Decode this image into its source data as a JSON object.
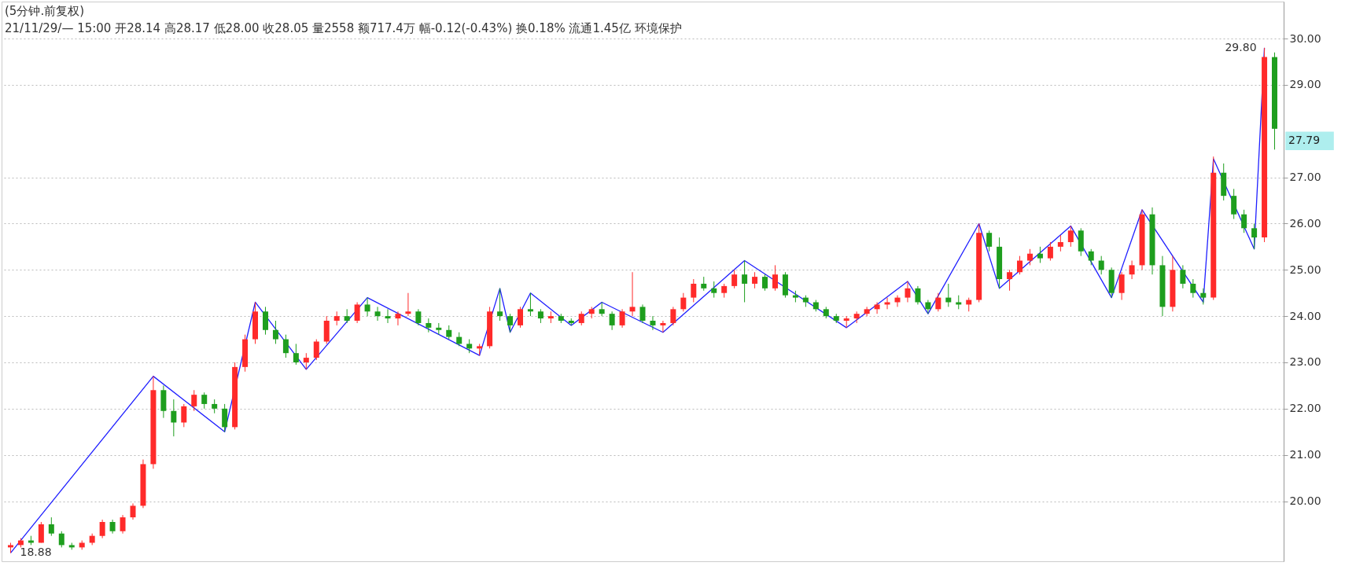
{
  "chart_data": {
    "type": "candlestick",
    "title": "(5分钟.前复权)",
    "annotations": [
      "21/11/29/— 15:00 开28.14 高28.17 低28.00 收28.05 量2558 额717.4万 幅-0.12(-0.43%) 换0.18% 流通1.45亿 环境保护",
      "29.80",
      "18.88",
      "27.79"
    ],
    "categories": [
      null,
      null,
      null,
      null,
      null,
      null,
      null,
      null,
      null,
      null,
      null,
      null,
      null,
      null,
      null,
      null,
      null,
      null,
      null,
      null,
      null,
      null,
      null,
      null,
      null,
      null,
      null,
      null,
      null,
      null,
      null,
      null,
      null,
      null,
      null,
      null,
      null,
      null,
      null,
      null,
      null,
      null,
      null,
      null,
      null,
      null,
      null,
      null,
      null,
      null,
      null,
      null,
      null,
      null,
      null,
      null,
      null,
      null,
      null,
      null,
      null,
      null,
      null,
      null,
      null,
      null,
      null,
      null,
      null,
      null,
      null,
      null,
      null,
      null,
      null,
      null,
      null,
      null,
      null,
      null,
      null,
      null,
      null,
      null,
      null,
      null,
      null,
      null,
      null,
      null,
      null,
      null,
      null,
      null,
      null,
      null,
      null,
      null,
      null,
      null,
      null,
      null,
      null,
      null,
      null,
      null,
      null,
      null,
      null,
      null,
      null,
      null,
      null,
      null,
      null,
      null,
      null,
      null,
      null,
      null,
      null,
      null,
      null,
      null,
      null
    ],
    "ohlc": [
      [
        19.0,
        19.1,
        18.88,
        19.05
      ],
      [
        19.05,
        19.2,
        19.0,
        19.15
      ],
      [
        19.15,
        19.25,
        19.05,
        19.1
      ],
      [
        19.1,
        19.55,
        19.1,
        19.5
      ],
      [
        19.5,
        19.65,
        19.25,
        19.3
      ],
      [
        19.3,
        19.35,
        19.0,
        19.05
      ],
      [
        19.05,
        19.1,
        18.95,
        19.0
      ],
      [
        19.0,
        19.15,
        18.95,
        19.1
      ],
      [
        19.1,
        19.3,
        19.05,
        19.25
      ],
      [
        19.25,
        19.6,
        19.2,
        19.55
      ],
      [
        19.55,
        19.6,
        19.3,
        19.35
      ],
      [
        19.35,
        19.7,
        19.3,
        19.65
      ],
      [
        19.65,
        19.95,
        19.6,
        19.9
      ],
      [
        19.9,
        20.9,
        19.85,
        20.8
      ],
      [
        20.8,
        22.7,
        20.7,
        22.4
      ],
      [
        22.4,
        22.5,
        21.8,
        21.95
      ],
      [
        21.95,
        22.2,
        21.4,
        21.7
      ],
      [
        21.7,
        22.1,
        21.6,
        22.05
      ],
      [
        22.05,
        22.4,
        21.95,
        22.3
      ],
      [
        22.3,
        22.35,
        22.0,
        22.1
      ],
      [
        22.1,
        22.2,
        21.9,
        22.0
      ],
      [
        22.0,
        22.1,
        21.5,
        21.6
      ],
      [
        21.6,
        23.0,
        21.55,
        22.9
      ],
      [
        22.9,
        23.6,
        22.8,
        23.5
      ],
      [
        23.5,
        24.3,
        23.4,
        24.1
      ],
      [
        24.1,
        24.2,
        23.6,
        23.7
      ],
      [
        23.7,
        23.9,
        23.4,
        23.5
      ],
      [
        23.5,
        23.6,
        23.1,
        23.2
      ],
      [
        23.2,
        23.4,
        22.95,
        23.0
      ],
      [
        23.0,
        23.2,
        22.85,
        23.1
      ],
      [
        23.1,
        23.5,
        23.05,
        23.45
      ],
      [
        23.45,
        24.0,
        23.4,
        23.9
      ],
      [
        23.9,
        24.1,
        23.8,
        24.0
      ],
      [
        24.0,
        24.15,
        23.85,
        23.9
      ],
      [
        23.9,
        24.3,
        23.85,
        24.25
      ],
      [
        24.25,
        24.4,
        24.0,
        24.1
      ],
      [
        24.1,
        24.2,
        23.9,
        24.0
      ],
      [
        24.0,
        24.15,
        23.85,
        23.95
      ],
      [
        23.95,
        24.1,
        23.8,
        24.05
      ],
      [
        24.05,
        24.5,
        24.0,
        24.1
      ],
      [
        24.1,
        24.15,
        23.8,
        23.85
      ],
      [
        23.85,
        23.95,
        23.65,
        23.75
      ],
      [
        23.75,
        23.85,
        23.6,
        23.7
      ],
      [
        23.7,
        23.8,
        23.5,
        23.55
      ],
      [
        23.55,
        23.65,
        23.35,
        23.4
      ],
      [
        23.4,
        23.5,
        23.2,
        23.3
      ],
      [
        23.3,
        23.4,
        23.15,
        23.35
      ],
      [
        23.35,
        24.2,
        23.3,
        24.1
      ],
      [
        24.1,
        24.6,
        23.9,
        24.0
      ],
      [
        24.0,
        24.05,
        23.65,
        23.8
      ],
      [
        23.8,
        24.2,
        23.75,
        24.15
      ],
      [
        24.15,
        24.5,
        24.0,
        24.1
      ],
      [
        24.1,
        24.15,
        23.85,
        23.95
      ],
      [
        23.95,
        24.1,
        23.85,
        24.0
      ],
      [
        24.0,
        24.05,
        23.85,
        23.9
      ],
      [
        23.9,
        23.95,
        23.8,
        23.85
      ],
      [
        23.85,
        24.1,
        23.8,
        24.05
      ],
      [
        24.05,
        24.2,
        23.95,
        24.15
      ],
      [
        24.15,
        24.3,
        24.0,
        24.05
      ],
      [
        24.05,
        24.1,
        23.7,
        23.8
      ],
      [
        23.8,
        24.15,
        23.75,
        24.1
      ],
      [
        24.1,
        24.95,
        24.0,
        24.2
      ],
      [
        24.2,
        24.25,
        23.85,
        23.9
      ],
      [
        23.9,
        24.0,
        23.7,
        23.8
      ],
      [
        23.8,
        23.9,
        23.65,
        23.85
      ],
      [
        23.85,
        24.2,
        23.8,
        24.15
      ],
      [
        24.15,
        24.5,
        24.1,
        24.4
      ],
      [
        24.4,
        24.8,
        24.3,
        24.7
      ],
      [
        24.7,
        24.85,
        24.55,
        24.6
      ],
      [
        24.6,
        24.75,
        24.4,
        24.5
      ],
      [
        24.5,
        24.7,
        24.4,
        24.65
      ],
      [
        24.65,
        25.0,
        24.6,
        24.9
      ],
      [
        24.9,
        25.2,
        24.3,
        24.7
      ],
      [
        24.7,
        24.95,
        24.6,
        24.85
      ],
      [
        24.85,
        24.9,
        24.55,
        24.6
      ],
      [
        24.6,
        25.1,
        24.55,
        24.9
      ],
      [
        24.9,
        24.95,
        24.4,
        24.45
      ],
      [
        24.45,
        24.55,
        24.3,
        24.4
      ],
      [
        24.4,
        24.45,
        24.2,
        24.3
      ],
      [
        24.3,
        24.35,
        24.1,
        24.15
      ],
      [
        24.15,
        24.2,
        23.95,
        24.0
      ],
      [
        24.0,
        24.05,
        23.85,
        23.9
      ],
      [
        23.9,
        24.0,
        23.75,
        23.95
      ],
      [
        23.95,
        24.1,
        23.85,
        24.05
      ],
      [
        24.05,
        24.2,
        24.0,
        24.15
      ],
      [
        24.15,
        24.3,
        24.05,
        24.25
      ],
      [
        24.25,
        24.4,
        24.15,
        24.3
      ],
      [
        24.3,
        24.45,
        24.2,
        24.4
      ],
      [
        24.4,
        24.75,
        24.3,
        24.6
      ],
      [
        24.6,
        24.65,
        24.25,
        24.3
      ],
      [
        24.3,
        24.35,
        24.05,
        24.15
      ],
      [
        24.15,
        24.5,
        24.1,
        24.4
      ],
      [
        24.4,
        24.7,
        24.2,
        24.3
      ],
      [
        24.3,
        24.45,
        24.15,
        24.25
      ],
      [
        24.25,
        24.4,
        24.1,
        24.35
      ],
      [
        24.35,
        26.0,
        24.3,
        25.8
      ],
      [
        25.8,
        25.85,
        25.4,
        25.5
      ],
      [
        25.5,
        25.7,
        24.6,
        24.8
      ],
      [
        24.8,
        25.0,
        24.55,
        24.95
      ],
      [
        24.95,
        25.3,
        24.9,
        25.2
      ],
      [
        25.2,
        25.45,
        25.1,
        25.35
      ],
      [
        25.35,
        25.5,
        25.15,
        25.25
      ],
      [
        25.25,
        25.6,
        25.2,
        25.5
      ],
      [
        25.5,
        25.75,
        25.4,
        25.6
      ],
      [
        25.6,
        25.95,
        25.5,
        25.85
      ],
      [
        25.85,
        25.9,
        25.3,
        25.4
      ],
      [
        25.4,
        25.45,
        25.1,
        25.2
      ],
      [
        25.2,
        25.3,
        24.9,
        25.0
      ],
      [
        25.0,
        25.05,
        24.4,
        24.5
      ],
      [
        24.5,
        24.95,
        24.35,
        24.9
      ],
      [
        24.9,
        25.2,
        24.8,
        25.1
      ],
      [
        25.1,
        26.3,
        25.0,
        26.2
      ],
      [
        26.2,
        26.35,
        24.9,
        25.1
      ],
      [
        25.1,
        25.3,
        24.0,
        24.2
      ],
      [
        24.2,
        25.3,
        24.1,
        25.0
      ],
      [
        25.0,
        25.1,
        24.6,
        24.7
      ],
      [
        24.7,
        24.8,
        24.4,
        24.5
      ],
      [
        24.5,
        24.6,
        24.25,
        24.4
      ],
      [
        24.4,
        27.45,
        24.35,
        27.1
      ],
      [
        27.1,
        27.3,
        26.5,
        26.6
      ],
      [
        26.6,
        26.75,
        26.1,
        26.2
      ],
      [
        26.2,
        26.3,
        25.8,
        25.9
      ],
      [
        25.9,
        26.0,
        25.45,
        25.7
      ],
      [
        25.7,
        29.8,
        25.6,
        29.6
      ],
      [
        29.6,
        29.7,
        27.6,
        28.05
      ]
    ],
    "colors": [
      "#ff2a2a",
      "#ff2a2a",
      "#1e9e1e",
      "#ff2a2a",
      "#1e9e1e",
      "#1e9e1e",
      "#1e9e1e",
      "#ff2a2a",
      "#ff2a2a",
      "#ff2a2a",
      "#1e9e1e",
      "#ff2a2a",
      "#ff2a2a",
      "#ff2a2a",
      "#ff2a2a",
      "#1e9e1e",
      "#1e9e1e",
      "#ff2a2a",
      "#ff2a2a",
      "#1e9e1e",
      "#1e9e1e",
      "#1e9e1e",
      "#ff2a2a",
      "#ff2a2a",
      "#ff2a2a",
      "#1e9e1e",
      "#1e9e1e",
      "#1e9e1e",
      "#1e9e1e",
      "#ff2a2a",
      "#ff2a2a",
      "#ff2a2a",
      "#ff2a2a",
      "#1e9e1e",
      "#ff2a2a",
      "#1e9e1e",
      "#1e9e1e",
      "#1e9e1e",
      "#ff2a2a",
      "#ff2a2a",
      "#1e9e1e",
      "#1e9e1e",
      "#1e9e1e",
      "#1e9e1e",
      "#1e9e1e",
      "#1e9e1e",
      "#ff2a2a",
      "#ff2a2a",
      "#1e9e1e",
      "#1e9e1e",
      "#ff2a2a",
      "#1e9e1e",
      "#1e9e1e",
      "#ff2a2a",
      "#1e9e1e",
      "#1e9e1e",
      "#ff2a2a",
      "#ff2a2a",
      "#1e9e1e",
      "#1e9e1e",
      "#ff2a2a",
      "#ff2a2a",
      "#1e9e1e",
      "#1e9e1e",
      "#ff2a2a",
      "#ff2a2a",
      "#ff2a2a",
      "#ff2a2a",
      "#1e9e1e",
      "#1e9e1e",
      "#ff2a2a",
      "#ff2a2a",
      "#1e9e1e",
      "#ff2a2a",
      "#1e9e1e",
      "#ff2a2a",
      "#1e9e1e",
      "#1e9e1e",
      "#1e9e1e",
      "#1e9e1e",
      "#1e9e1e",
      "#1e9e1e",
      "#ff2a2a",
      "#ff2a2a",
      "#ff2a2a",
      "#ff2a2a",
      "#ff2a2a",
      "#ff2a2a",
      "#ff2a2a",
      "#1e9e1e",
      "#1e9e1e",
      "#ff2a2a",
      "#1e9e1e",
      "#1e9e1e",
      "#ff2a2a",
      "#ff2a2a",
      "#1e9e1e",
      "#1e9e1e",
      "#ff2a2a",
      "#ff2a2a",
      "#ff2a2a",
      "#1e9e1e",
      "#ff2a2a",
      "#ff2a2a",
      "#ff2a2a",
      "#1e9e1e",
      "#1e9e1e",
      "#1e9e1e",
      "#1e9e1e",
      "#ff2a2a",
      "#ff2a2a",
      "#ff2a2a",
      "#1e9e1e",
      "#1e9e1e",
      "#ff2a2a",
      "#1e9e1e",
      "#1e9e1e",
      "#1e9e1e",
      "#ff2a2a",
      "#1e9e1e",
      "#1e9e1e",
      "#1e9e1e",
      "#1e9e1e",
      "#ff2a2a",
      "#1e9e1e"
    ],
    "series": [
      {
        "type": "line",
        "color": "#1f1fff",
        "values": [
          18.88,
          null,
          null,
          null,
          null,
          null,
          null,
          null,
          null,
          null,
          null,
          null,
          null,
          null,
          22.7,
          null,
          null,
          null,
          null,
          null,
          null,
          21.5,
          null,
          null,
          24.3,
          null,
          null,
          null,
          null,
          22.85,
          null,
          null,
          null,
          null,
          null,
          24.4,
          null,
          null,
          null,
          null,
          null,
          null,
          null,
          null,
          null,
          null,
          23.15,
          null,
          24.6,
          23.65,
          null,
          24.5,
          null,
          null,
          null,
          23.8,
          null,
          null,
          24.3,
          null,
          null,
          null,
          null,
          null,
          23.65,
          null,
          null,
          null,
          null,
          null,
          null,
          null,
          25.2,
          null,
          null,
          null,
          null,
          null,
          null,
          null,
          null,
          null,
          23.75,
          null,
          null,
          null,
          null,
          null,
          24.75,
          null,
          24.05,
          null,
          null,
          null,
          null,
          26.0,
          null,
          24.6,
          null,
          null,
          null,
          null,
          null,
          null,
          25.95,
          null,
          null,
          null,
          24.4,
          null,
          null,
          26.3,
          null,
          null,
          null,
          null,
          null,
          24.3,
          27.4,
          null,
          null,
          null,
          25.45,
          29.8,
          null
        ]
      }
    ],
    "ylim": [
      18.7,
      30.8
    ],
    "yticks": [
      {
        "value": 20,
        "label": "20.00"
      },
      {
        "value": 21,
        "label": "21.00"
      },
      {
        "value": 22,
        "label": "22.00"
      },
      {
        "value": 23,
        "label": "23.00"
      },
      {
        "value": 24,
        "label": "24.00"
      },
      {
        "value": 25,
        "label": "25.00"
      },
      {
        "value": 26,
        "label": "26.00"
      },
      {
        "value": 27,
        "label": "27.00"
      },
      {
        "value": 29,
        "label": "29.00"
      },
      {
        "value": 30,
        "label": "30.00"
      }
    ],
    "grid": "y"
  }
}
